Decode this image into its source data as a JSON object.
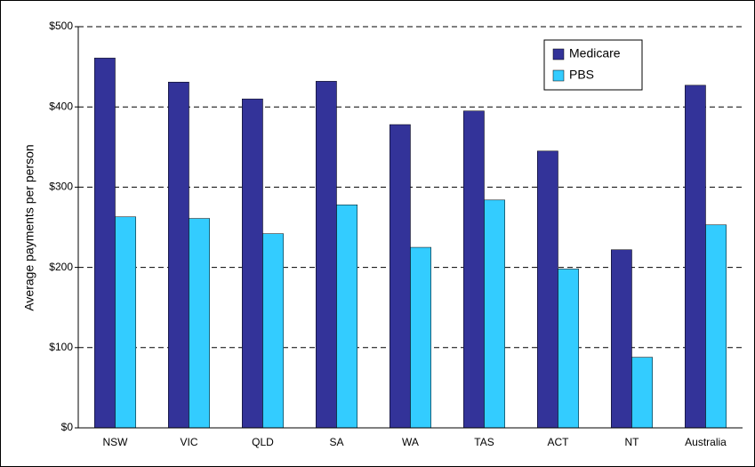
{
  "chart_data": {
    "type": "bar",
    "y_label": "Average payments per person",
    "categories": [
      "NSW",
      "VIC",
      "QLD",
      "SA",
      "WA",
      "TAS",
      "ACT",
      "NT",
      "Australia"
    ],
    "series": [
      {
        "name": "Medicare",
        "color": "#333399",
        "values": [
          461,
          431,
          410,
          432,
          378,
          395,
          345,
          222,
          427
        ]
      },
      {
        "name": "PBS",
        "color": "#33ccff",
        "values": [
          263,
          261,
          242,
          278,
          225,
          284,
          198,
          88,
          253
        ]
      }
    ],
    "ylim": [
      0,
      500
    ],
    "yticks": [
      {
        "value": 0,
        "label": "$0"
      },
      {
        "value": 100,
        "label": "$100"
      },
      {
        "value": 200,
        "label": "$200"
      },
      {
        "value": 300,
        "label": "$300"
      },
      {
        "value": 400,
        "label": "$400"
      },
      {
        "value": 500,
        "label": "$500"
      }
    ],
    "grid": true,
    "legend": "top-right"
  }
}
